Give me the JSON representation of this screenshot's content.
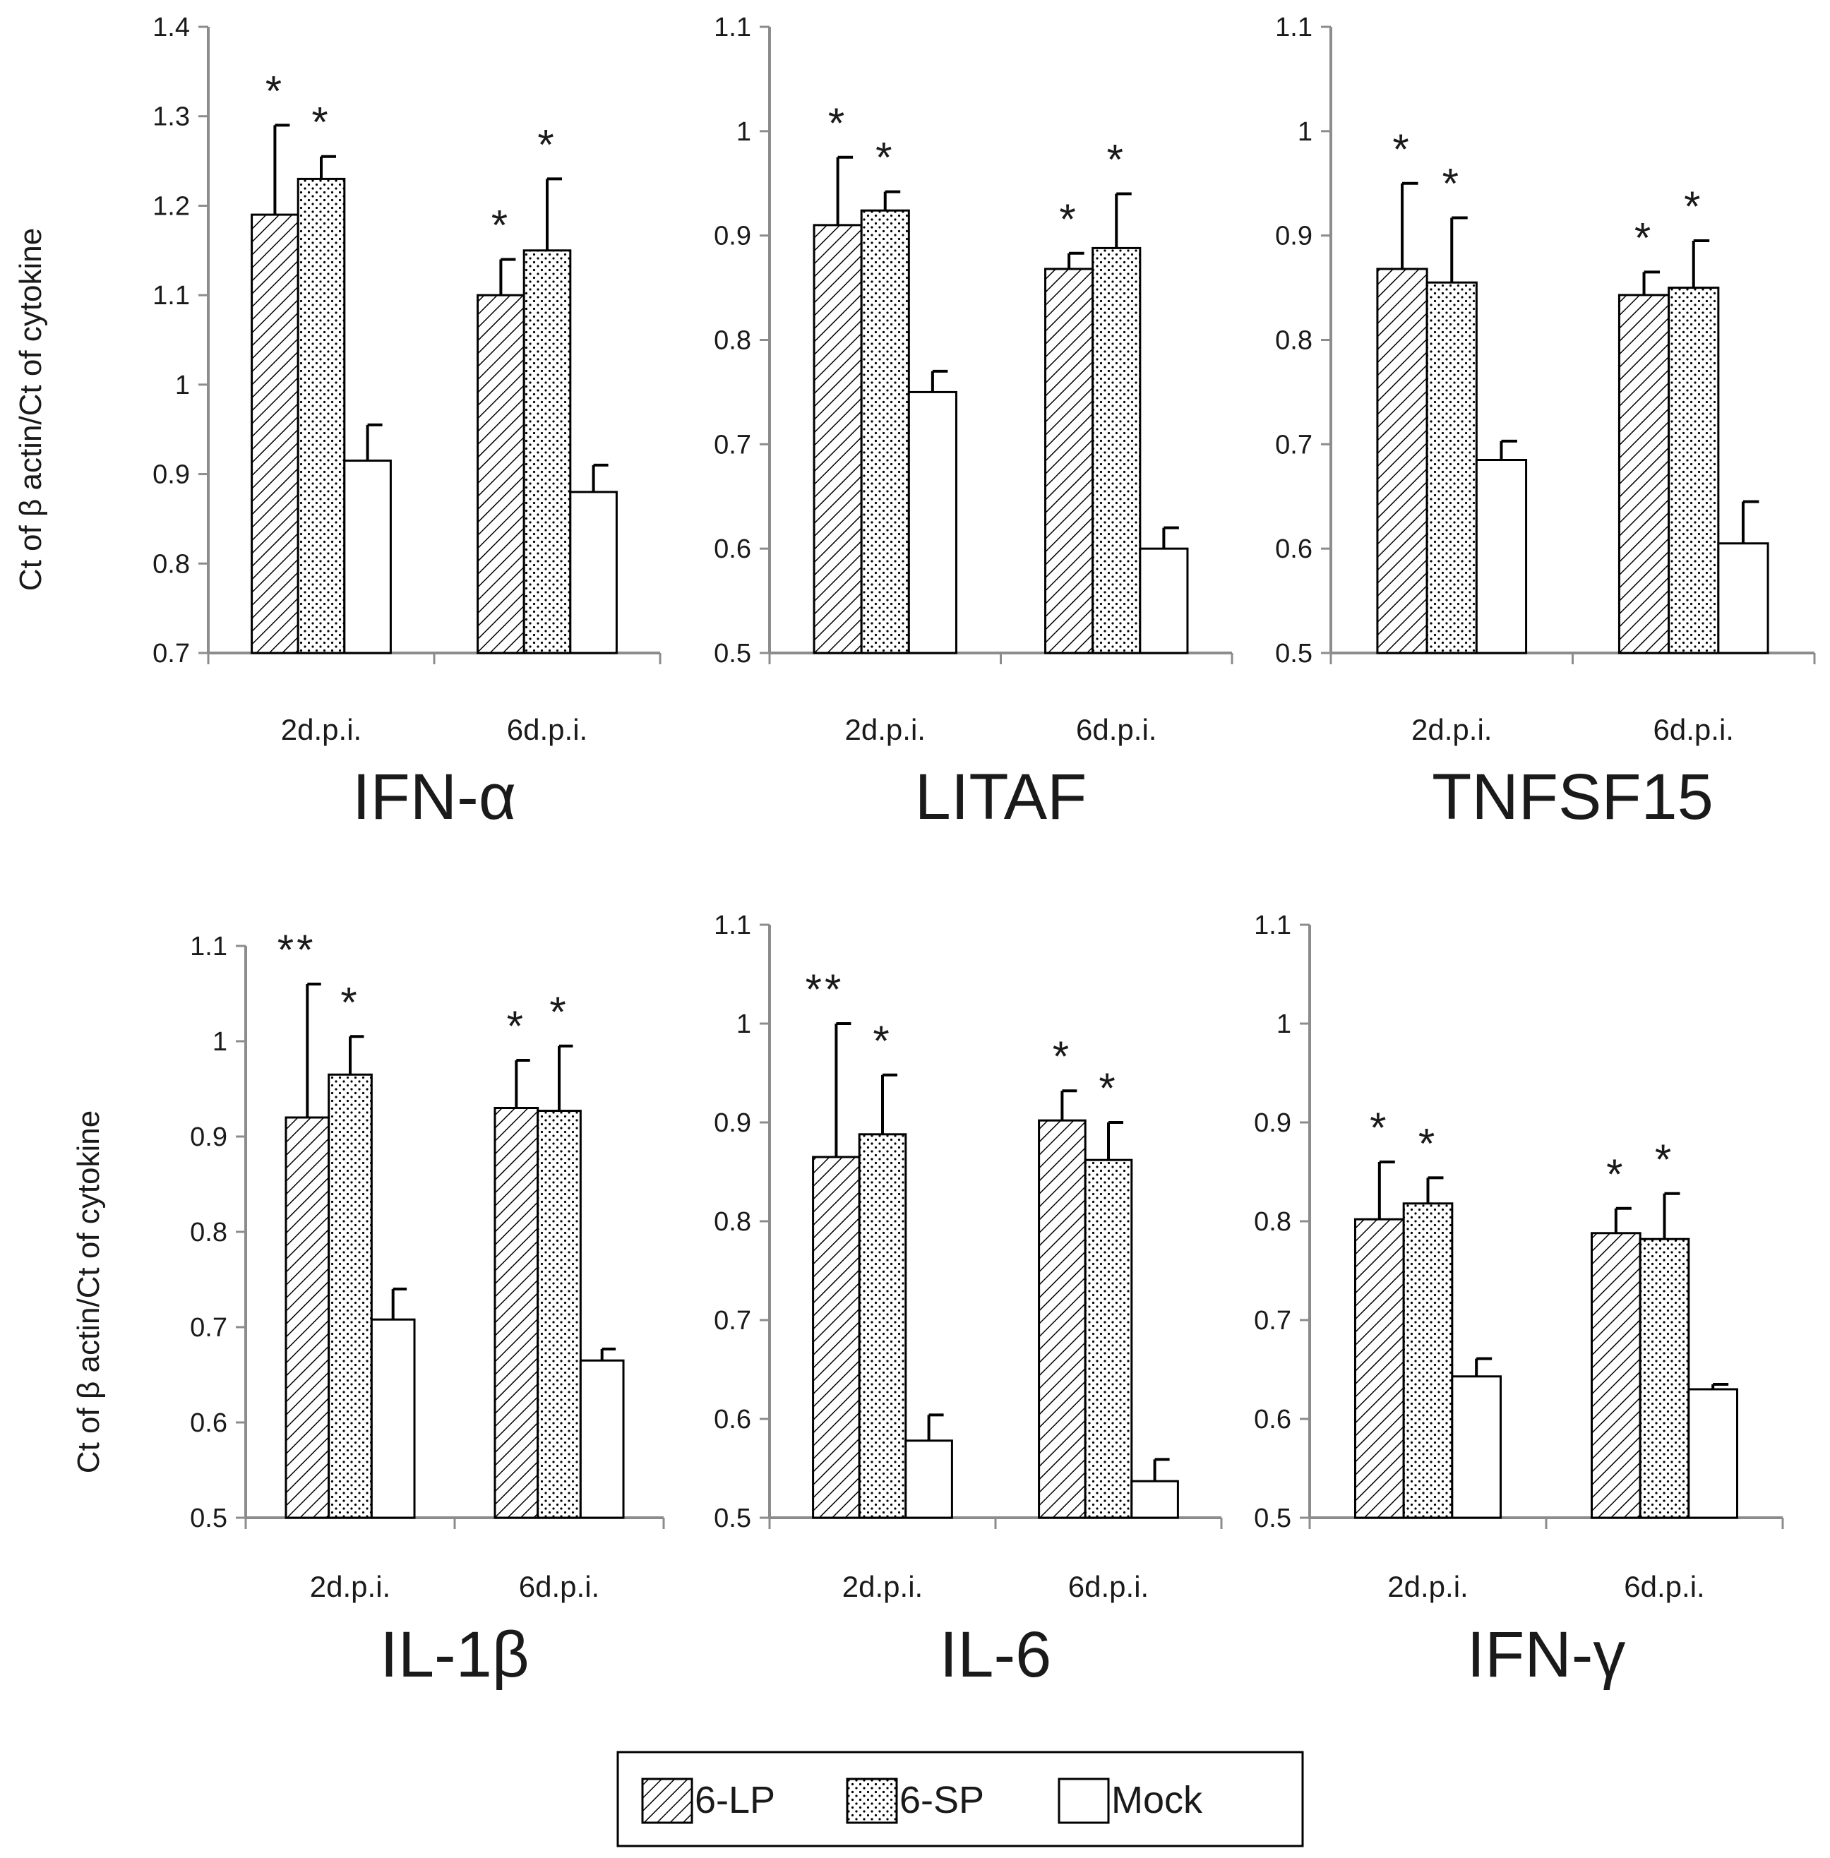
{
  "figure": {
    "ylabel": "Ct of β actin/Ct of cytokine",
    "legend": {
      "items": [
        {
          "label": "6-LP",
          "pattern": "hatch"
        },
        {
          "label": "6-SP",
          "pattern": "dots"
        },
        {
          "label": "Mock",
          "pattern": "white"
        }
      ]
    },
    "colors": {
      "axis": "#8c8c8c",
      "bar_stroke": "#000000",
      "bar_fill": "#ffffff",
      "text": "#1a1a1a"
    }
  },
  "chart_data": [
    {
      "type": "bar",
      "title": "IFN-α",
      "ylabel": "Ct of β actin/Ct of cytokine",
      "ylim": [
        0.7,
        1.4
      ],
      "yticks": [
        "0.7",
        "0.8",
        "0.9",
        "1",
        "1.1",
        "1.2",
        "1.3",
        "1.4"
      ],
      "categories": [
        "2d.p.i.",
        "6d.p.i."
      ],
      "series": [
        {
          "name": "6-LP",
          "values": [
            1.19,
            1.1
          ],
          "errors": [
            0.1,
            0.04
          ],
          "significance": [
            "*",
            "*"
          ]
        },
        {
          "name": "6-SP",
          "values": [
            1.23,
            1.15
          ],
          "errors": [
            0.025,
            0.08
          ],
          "significance": [
            "*",
            "*"
          ]
        },
        {
          "name": "Mock",
          "values": [
            0.915,
            0.88
          ],
          "errors": [
            0.04,
            0.03
          ],
          "significance": [
            "",
            ""
          ]
        }
      ]
    },
    {
      "type": "bar",
      "title": "LITAF",
      "ylabel": "",
      "ylim": [
        0.5,
        1.1
      ],
      "yticks": [
        "0.5",
        "0.6",
        "0.7",
        "0.8",
        "0.9",
        "1",
        "1.1"
      ],
      "categories": [
        "2d.p.i.",
        "6d.p.i."
      ],
      "series": [
        {
          "name": "6-LP",
          "values": [
            0.91,
            0.868
          ],
          "errors": [
            0.065,
            0.015
          ],
          "significance": [
            "*",
            "*"
          ]
        },
        {
          "name": "6-SP",
          "values": [
            0.924,
            0.888
          ],
          "errors": [
            0.018,
            0.052
          ],
          "significance": [
            "*",
            "*"
          ]
        },
        {
          "name": "Mock",
          "values": [
            0.75,
            0.6
          ],
          "errors": [
            0.02,
            0.02
          ],
          "significance": [
            "",
            ""
          ]
        }
      ]
    },
    {
      "type": "bar",
      "title": "TNFSF15",
      "ylabel": "",
      "ylim": [
        0.5,
        1.1
      ],
      "yticks": [
        "0.5",
        "0.6",
        "0.7",
        "0.8",
        "0.9",
        "1",
        "1.1"
      ],
      "categories": [
        "2d.p.i.",
        "6d.p.i."
      ],
      "series": [
        {
          "name": "6-LP",
          "values": [
            0.868,
            0.843
          ],
          "errors": [
            0.082,
            0.022
          ],
          "significance": [
            "*",
            "*"
          ]
        },
        {
          "name": "6-SP",
          "values": [
            0.855,
            0.85
          ],
          "errors": [
            0.062,
            0.045
          ],
          "significance": [
            "*",
            "*"
          ]
        },
        {
          "name": "Mock",
          "values": [
            0.685,
            0.605
          ],
          "errors": [
            0.018,
            0.04
          ],
          "significance": [
            "",
            ""
          ]
        }
      ]
    },
    {
      "type": "bar",
      "title": "IL-1β",
      "ylabel": "Ct of β actin/Ct of cytokine",
      "ylim": [
        0.5,
        1.1
      ],
      "yticks": [
        "0.5",
        "0.6",
        "0.7",
        "0.8",
        "0.9",
        "1",
        "1.1"
      ],
      "categories": [
        "2d.p.i.",
        "6d.p.i."
      ],
      "series": [
        {
          "name": "6-LP",
          "values": [
            0.92,
            0.93
          ],
          "errors": [
            0.14,
            0.05
          ],
          "significance": [
            "**",
            "*"
          ]
        },
        {
          "name": "6-SP",
          "values": [
            0.965,
            0.927
          ],
          "errors": [
            0.04,
            0.068
          ],
          "significance": [
            "*",
            "*"
          ]
        },
        {
          "name": "Mock",
          "values": [
            0.708,
            0.665
          ],
          "errors": [
            0.032,
            0.012
          ],
          "significance": [
            "",
            ""
          ]
        }
      ]
    },
    {
      "type": "bar",
      "title": "IL-6",
      "ylabel": "",
      "ylim": [
        0.5,
        1.1
      ],
      "yticks": [
        "0.5",
        "0.6",
        "0.7",
        "0.8",
        "0.9",
        "1",
        "1.1"
      ],
      "categories": [
        "2d.p.i.",
        "6d.p.i."
      ],
      "series": [
        {
          "name": "6-LP",
          "values": [
            0.865,
            0.902
          ],
          "errors": [
            0.135,
            0.03
          ],
          "significance": [
            "**",
            "*"
          ]
        },
        {
          "name": "6-SP",
          "values": [
            0.888,
            0.862
          ],
          "errors": [
            0.06,
            0.038
          ],
          "significance": [
            "*",
            "*"
          ]
        },
        {
          "name": "Mock",
          "values": [
            0.578,
            0.537
          ],
          "errors": [
            0.026,
            0.022
          ],
          "significance": [
            "",
            ""
          ]
        }
      ]
    },
    {
      "type": "bar",
      "title": "IFN-γ",
      "ylabel": "",
      "ylim": [
        0.5,
        1.1
      ],
      "yticks": [
        "0.5",
        "0.6",
        "0.7",
        "0.8",
        "0.9",
        "1",
        "1.1"
      ],
      "categories": [
        "2d.p.i.",
        "6d.p.i."
      ],
      "series": [
        {
          "name": "6-LP",
          "values": [
            0.802,
            0.788
          ],
          "errors": [
            0.058,
            0.025
          ],
          "significance": [
            "*",
            "*"
          ]
        },
        {
          "name": "6-SP",
          "values": [
            0.818,
            0.782
          ],
          "errors": [
            0.026,
            0.046
          ],
          "significance": [
            "*",
            "*"
          ]
        },
        {
          "name": "Mock",
          "values": [
            0.643,
            0.63
          ],
          "errors": [
            0.018,
            0.005
          ],
          "significance": [
            "",
            ""
          ]
        }
      ]
    }
  ]
}
